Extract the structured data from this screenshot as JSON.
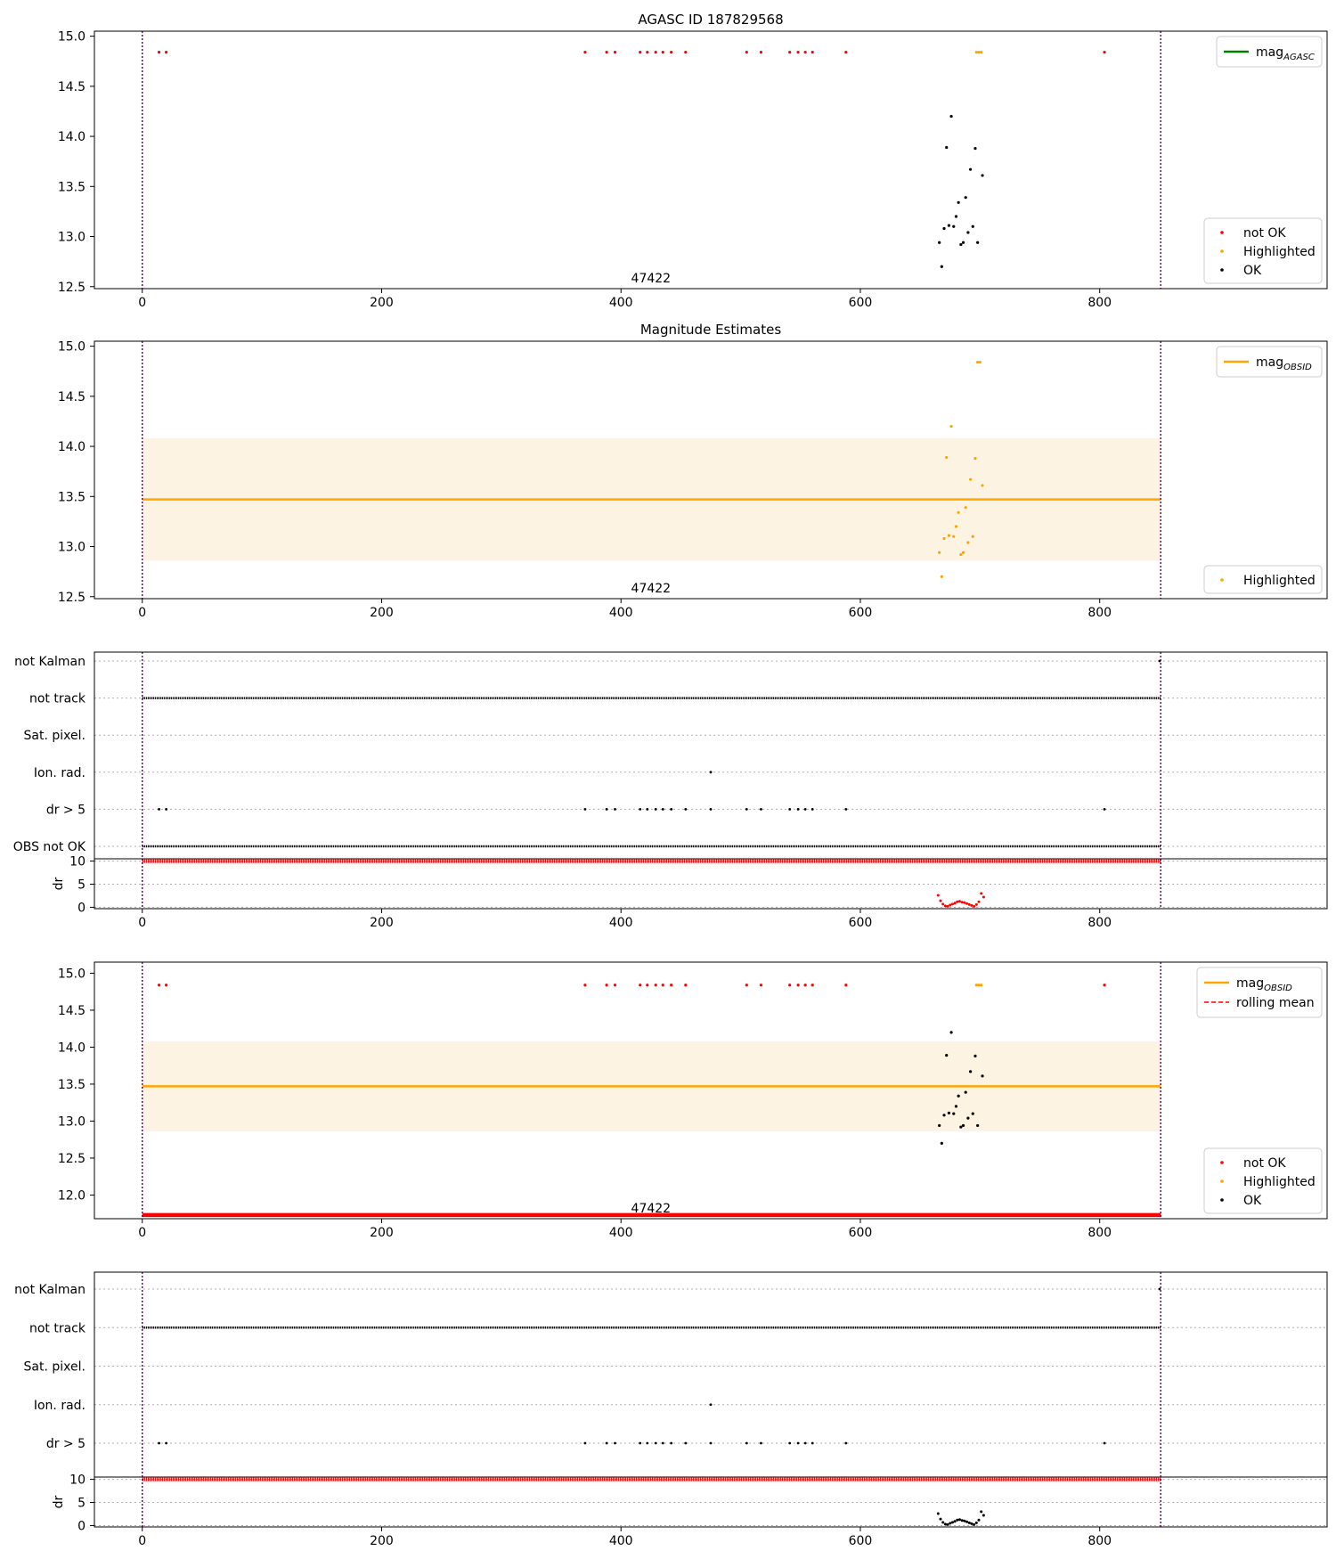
{
  "figure": {
    "suptitle": "AGASC ID 187829568"
  },
  "colors": {
    "not_ok": "#ff0000",
    "highlighted": "#ffa500",
    "ok": "#000000",
    "mag_agasc": "#008000",
    "mag_obsid": "#ffa500",
    "band": "#fdf3e3",
    "obs_boundary": "#800080",
    "rolling_mean": "#ff0000"
  },
  "chart_data": [
    {
      "id": "p1",
      "type": "scatter",
      "title": "",
      "obsid_label": "47422",
      "xlim": [
        -40,
        990
      ],
      "ylim": [
        12.48,
        15.05
      ],
      "yticks": [
        12.5,
        13.0,
        13.5,
        14.0,
        14.5,
        15.0
      ],
      "xticks": [
        0,
        200,
        400,
        600,
        800
      ],
      "obs_boundaries": [
        0,
        851
      ],
      "mag_line": null,
      "legend_lines": [
        {
          "label_main": "mag",
          "label_sub": "AGASC",
          "color": "#008000",
          "style": "solid"
        }
      ],
      "legend_markers": [
        {
          "label": "not OK",
          "color": "#ff0000"
        },
        {
          "label": "Highlighted",
          "color": "#ffa500"
        },
        {
          "label": "OK",
          "color": "#000000"
        }
      ],
      "series": [
        {
          "name": "not OK",
          "color": "#ff0000",
          "x": [
            14,
            20,
            370,
            388,
            395,
            416,
            422,
            429,
            435,
            442,
            454,
            505,
            517,
            541,
            548,
            554,
            560,
            588,
            804
          ],
          "y": [
            14.84,
            14.84,
            14.84,
            14.84,
            14.84,
            14.84,
            14.84,
            14.84,
            14.84,
            14.84,
            14.84,
            14.84,
            14.84,
            14.84,
            14.84,
            14.84,
            14.84,
            14.84,
            14.84
          ]
        },
        {
          "name": "Highlighted",
          "color": "#ffa500",
          "x": [
            697,
            699,
            701
          ],
          "y": [
            14.84,
            14.84,
            14.84
          ]
        },
        {
          "name": "OK",
          "color": "#000000",
          "x": [
            666,
            668,
            670,
            672,
            674,
            676,
            678,
            680,
            682,
            684,
            686,
            688,
            690,
            692,
            694,
            696,
            698,
            702
          ],
          "y": [
            12.94,
            12.7,
            13.08,
            13.89,
            13.11,
            14.2,
            13.1,
            13.2,
            13.34,
            12.92,
            12.94,
            13.39,
            13.04,
            13.67,
            13.1,
            13.88,
            12.94,
            13.61
          ]
        }
      ]
    },
    {
      "id": "p2",
      "type": "scatter",
      "title": "Magnitude Estimates",
      "obsid_label": "47422",
      "xlim": [
        -40,
        990
      ],
      "ylim": [
        12.48,
        15.05
      ],
      "yticks": [
        12.5,
        13.0,
        13.5,
        14.0,
        14.5,
        15.0
      ],
      "xticks": [
        0,
        200,
        400,
        600,
        800
      ],
      "obs_boundaries": [
        0,
        851
      ],
      "mag_line": {
        "value": 13.47,
        "band": [
          12.86,
          14.08
        ],
        "x": [
          0,
          851
        ]
      },
      "legend_lines": [
        {
          "label_main": "mag",
          "label_sub": "OBSID",
          "color": "#ffa500",
          "style": "solid"
        }
      ],
      "legend_markers": [
        {
          "label": "Highlighted",
          "color": "#ffa500"
        }
      ],
      "series": [
        {
          "name": "Highlighted",
          "color": "#ffa500",
          "x": [
            666,
            668,
            670,
            672,
            674,
            676,
            678,
            680,
            682,
            684,
            686,
            688,
            690,
            692,
            694,
            696,
            698,
            700,
            702
          ],
          "y": [
            12.94,
            12.7,
            13.08,
            13.89,
            13.11,
            14.2,
            13.1,
            13.2,
            13.34,
            12.92,
            12.94,
            13.39,
            13.04,
            13.67,
            13.1,
            13.88,
            14.84,
            14.84,
            13.61
          ]
        }
      ]
    },
    {
      "id": "p3",
      "type": "scatter",
      "title": "",
      "xlim": [
        -40,
        990
      ],
      "xticks": [
        0,
        200,
        400,
        600,
        800
      ],
      "obs_boundaries": [
        0,
        851
      ],
      "flag_rows": [
        "not Kalman",
        "not track",
        "Sat. pixel.",
        "Ion. rad.",
        "dr > 5",
        "OBS not OK"
      ],
      "flags": {
        "not Kalman": {
          "full": false,
          "x": [
            850
          ]
        },
        "not track": {
          "full": true,
          "x": []
        },
        "Sat. pixel.": {
          "full": false,
          "x": []
        },
        "Ion. rad.": {
          "full": false,
          "x": [
            475
          ]
        },
        "dr > 5": {
          "full": false,
          "x": [
            14,
            20,
            370,
            388,
            395,
            416,
            422,
            429,
            435,
            442,
            454,
            475,
            505,
            517,
            541,
            548,
            554,
            560,
            588,
            804
          ]
        },
        "OBS not OK": {
          "full": true,
          "x": []
        }
      },
      "dr": {
        "ylabel": "dr",
        "ylim": [
          -0.3,
          10.5
        ],
        "yticks": [
          0,
          5,
          10
        ],
        "cap_value": 10,
        "x": [
          665,
          667,
          669,
          671,
          673,
          675,
          677,
          679,
          681,
          683,
          685,
          687,
          689,
          691,
          693,
          695,
          697,
          699,
          701,
          703
        ],
        "y": [
          2.6,
          1.4,
          0.7,
          0.3,
          0.2,
          0.5,
          0.7,
          0.9,
          1.2,
          1.3,
          1.1,
          1.0,
          0.8,
          0.6,
          0.4,
          0.2,
          0.6,
          1.2,
          3.0,
          2.2
        ],
        "color": "#ff0000"
      }
    },
    {
      "id": "p4",
      "type": "scatter",
      "title": "",
      "obsid_label": "47422",
      "xlim": [
        -40,
        990
      ],
      "ylim": [
        11.68,
        15.15
      ],
      "yticks": [
        12.0,
        12.5,
        13.0,
        13.5,
        14.0,
        14.5,
        15.0
      ],
      "xticks": [
        0,
        200,
        400,
        600,
        800
      ],
      "obs_boundaries": [
        0,
        851
      ],
      "mag_line": {
        "value": 13.47,
        "band": [
          12.86,
          14.08
        ],
        "x": [
          0,
          851
        ]
      },
      "rolling_floor": 11.73,
      "legend_lines": [
        {
          "label_main": "mag",
          "label_sub": "OBSID",
          "color": "#ffa500",
          "style": "solid"
        },
        {
          "label_main": "rolling mean",
          "label_sub": "",
          "color": "#ff0000",
          "style": "dashed"
        }
      ],
      "legend_markers": [
        {
          "label": "not OK",
          "color": "#ff0000"
        },
        {
          "label": "Highlighted",
          "color": "#ffa500"
        },
        {
          "label": "OK",
          "color": "#000000"
        }
      ],
      "series": [
        {
          "name": "not OK",
          "color": "#ff0000",
          "x": [
            14,
            20,
            370,
            388,
            395,
            416,
            422,
            429,
            435,
            442,
            454,
            505,
            517,
            541,
            548,
            554,
            560,
            588,
            804
          ],
          "y": [
            14.84,
            14.84,
            14.84,
            14.84,
            14.84,
            14.84,
            14.84,
            14.84,
            14.84,
            14.84,
            14.84,
            14.84,
            14.84,
            14.84,
            14.84,
            14.84,
            14.84,
            14.84,
            14.84
          ]
        },
        {
          "name": "Highlighted",
          "color": "#ffa500",
          "x": [
            697,
            699,
            701
          ],
          "y": [
            14.84,
            14.84,
            14.84
          ]
        },
        {
          "name": "OK",
          "color": "#000000",
          "x": [
            666,
            668,
            670,
            672,
            674,
            676,
            678,
            680,
            682,
            684,
            686,
            688,
            690,
            692,
            694,
            696,
            698,
            702
          ],
          "y": [
            12.94,
            12.7,
            13.08,
            13.89,
            13.11,
            14.2,
            13.1,
            13.2,
            13.34,
            12.92,
            12.94,
            13.39,
            13.04,
            13.67,
            13.1,
            13.88,
            12.94,
            13.61
          ]
        }
      ]
    },
    {
      "id": "p5",
      "type": "scatter",
      "title": "",
      "xlim": [
        -40,
        990
      ],
      "xticks": [
        0,
        200,
        400,
        600,
        800
      ],
      "obs_boundaries": [
        0,
        851
      ],
      "flag_rows": [
        "not Kalman",
        "not track",
        "Sat. pixel.",
        "Ion. rad.",
        "dr > 5"
      ],
      "flags": {
        "not Kalman": {
          "full": false,
          "x": [
            850
          ]
        },
        "not track": {
          "full": true,
          "x": []
        },
        "Sat. pixel.": {
          "full": false,
          "x": []
        },
        "Ion. rad.": {
          "full": false,
          "x": [
            475
          ]
        },
        "dr > 5": {
          "full": false,
          "x": [
            14,
            20,
            370,
            388,
            395,
            416,
            422,
            429,
            435,
            442,
            454,
            475,
            505,
            517,
            541,
            548,
            554,
            560,
            588,
            804
          ]
        }
      },
      "dr": {
        "ylabel": "dr",
        "ylim": [
          -0.3,
          10.5
        ],
        "yticks": [
          0,
          5,
          10
        ],
        "cap_value": 10,
        "x": [
          665,
          667,
          669,
          671,
          673,
          675,
          677,
          679,
          681,
          683,
          685,
          687,
          689,
          691,
          693,
          695,
          697,
          699,
          701,
          703
        ],
        "y": [
          2.6,
          1.4,
          0.7,
          0.3,
          0.2,
          0.5,
          0.7,
          0.9,
          1.2,
          1.3,
          1.1,
          1.0,
          0.8,
          0.6,
          0.4,
          0.2,
          0.6,
          1.2,
          3.0,
          2.2
        ],
        "color": "#000000"
      }
    }
  ]
}
